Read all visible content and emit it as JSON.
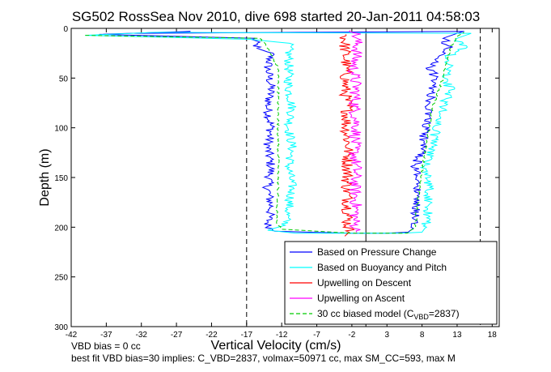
{
  "chart_data": {
    "type": "line",
    "title": "SG502 RossSea Nov 2010, dive 698 started 20-Jan-2011 04:58:03",
    "xlabel": "Vertical Velocity (cm/s)",
    "ylabel": "Depth (m)",
    "xlim": [
      -42,
      19
    ],
    "ylim": [
      0,
      300
    ],
    "y_reversed": true,
    "x_ticks": [
      -42,
      -37,
      -32,
      -27,
      -22,
      -17,
      -12,
      -7,
      -2,
      3,
      8,
      13,
      18
    ],
    "y_ticks": [
      0,
      50,
      100,
      150,
      200,
      250,
      300
    ],
    "grid": false,
    "legend_position": "bottom-right",
    "reference_lines": [
      {
        "x": -17,
        "style": "dashed",
        "color": "#000000"
      },
      {
        "x": 0,
        "style": "solid",
        "color": "#000000"
      },
      {
        "x": 16.3,
        "style": "dashed",
        "color": "#000000"
      }
    ],
    "series": [
      {
        "name": "Based on Pressure Change",
        "color": "#0000ff",
        "style": "solid",
        "points": [
          [
            -25,
            3
          ],
          [
            -38,
            6
          ],
          [
            -16,
            10
          ],
          [
            -15.5,
            20
          ],
          [
            -13.5,
            25
          ],
          [
            -14,
            40
          ],
          [
            -13.5,
            60
          ],
          [
            -14,
            80
          ],
          [
            -13.5,
            100
          ],
          [
            -14,
            120
          ],
          [
            -13.5,
            140
          ],
          [
            -14,
            160
          ],
          [
            -13.5,
            180
          ],
          [
            -14,
            198
          ],
          [
            -13,
            204
          ],
          [
            -8,
            205
          ],
          [
            -2,
            206
          ],
          [
            3,
            206
          ],
          [
            6,
            205
          ],
          [
            7,
            200
          ],
          [
            7,
            180
          ],
          [
            7.5,
            160
          ],
          [
            7,
            140
          ],
          [
            8,
            120
          ],
          [
            8.5,
            100
          ],
          [
            9,
            80
          ],
          [
            9.5,
            60
          ],
          [
            10,
            50
          ],
          [
            9,
            40
          ],
          [
            10,
            30
          ],
          [
            12,
            20
          ],
          [
            11,
            10
          ],
          [
            13,
            5
          ],
          [
            14,
            3
          ],
          [
            -33,
            5
          ],
          [
            -25,
            3
          ]
        ]
      },
      {
        "name": "Based on Buoyancy and Pitch",
        "color": "#00ffff",
        "style": "solid",
        "points": [
          [
            -30,
            4
          ],
          [
            -40,
            7
          ],
          [
            -16.5,
            11
          ],
          [
            -11,
            15
          ],
          [
            -11,
            40
          ],
          [
            -11,
            60
          ],
          [
            -10.5,
            80
          ],
          [
            -11,
            100
          ],
          [
            -10.5,
            120
          ],
          [
            -11,
            140
          ],
          [
            -10.5,
            160
          ],
          [
            -11,
            180
          ],
          [
            -11.5,
            198
          ],
          [
            -14,
            203
          ],
          [
            -10,
            206
          ],
          [
            -2,
            206
          ],
          [
            5,
            206
          ],
          [
            8,
            205
          ],
          [
            8.5,
            200
          ],
          [
            9,
            180
          ],
          [
            9,
            160
          ],
          [
            8.5,
            140
          ],
          [
            9.5,
            120
          ],
          [
            10,
            100
          ],
          [
            11,
            80
          ],
          [
            12,
            60
          ],
          [
            11,
            50
          ],
          [
            12,
            40
          ],
          [
            11,
            30
          ],
          [
            14,
            20
          ],
          [
            13,
            10
          ],
          [
            15,
            5
          ],
          [
            -30,
            4
          ]
        ]
      },
      {
        "name": "Upwelling on Descent",
        "color": "#ff0000",
        "style": "solid",
        "points": [
          [
            -3,
            6
          ],
          [
            -3,
            20
          ],
          [
            -2.8,
            40
          ],
          [
            -3,
            60
          ],
          [
            -2.6,
            80
          ],
          [
            -2.8,
            100
          ],
          [
            -2.5,
            120
          ],
          [
            -2.6,
            140
          ],
          [
            -2.7,
            160
          ],
          [
            -2.5,
            180
          ],
          [
            -2.6,
            195
          ],
          [
            -2.4,
            205
          ],
          [
            -3,
            209
          ]
        ]
      },
      {
        "name": "Upwelling on Ascent",
        "color": "#ff00ff",
        "style": "solid",
        "points": [
          [
            -1.5,
            2
          ],
          [
            -1.2,
            20
          ],
          [
            -1.8,
            40
          ],
          [
            -1.4,
            60
          ],
          [
            -1.6,
            80
          ],
          [
            -1.3,
            100
          ],
          [
            -1.7,
            120
          ],
          [
            -1.4,
            140
          ],
          [
            -1.6,
            160
          ],
          [
            -1.4,
            180
          ],
          [
            -1.6,
            195
          ],
          [
            -1.3,
            205
          ]
        ]
      },
      {
        "name": "30 cc biased model (C_VBD=2837)",
        "color": "#00cc00",
        "style": "dashed",
        "points": [
          [
            -40,
            7
          ],
          [
            -15,
            10
          ],
          [
            -14,
            20
          ],
          [
            -12.5,
            40
          ],
          [
            -12.5,
            100
          ],
          [
            -12.5,
            160
          ],
          [
            -12.8,
            195
          ],
          [
            -12,
            202
          ],
          [
            -2,
            206
          ],
          [
            6,
            206
          ],
          [
            7,
            200
          ],
          [
            7.5,
            170
          ],
          [
            8.5,
            120
          ],
          [
            9.5,
            80
          ],
          [
            11,
            50
          ],
          [
            12,
            20
          ],
          [
            13,
            8
          ],
          [
            14,
            4
          ]
        ]
      }
    ],
    "legend_entries": [
      {
        "label": "Based on Pressure Change",
        "color": "#0000ff",
        "style": "solid"
      },
      {
        "label": "Based on Buoyancy and Pitch",
        "color": "#00ffff",
        "style": "solid"
      },
      {
        "label": "Upwelling on Descent",
        "color": "#ff0000",
        "style": "solid"
      },
      {
        "label": "Upwelling on Ascent",
        "color": "#ff00ff",
        "style": "solid"
      },
      {
        "label": "30 cc biased model (C",
        "sub": "VBD",
        "suffix": "=2837)",
        "color": "#00cc00",
        "style": "dashed"
      }
    ],
    "annotations": [
      "VBD bias = 0 cc",
      "best fit VBD bias=30 implies: C_VBD=2837, volmax=50971 cc, max SM_CC=593, max M"
    ]
  }
}
